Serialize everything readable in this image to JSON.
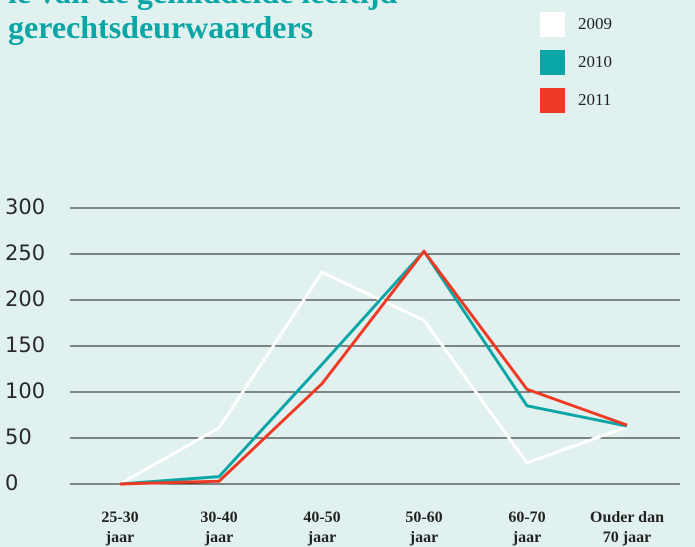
{
  "chart_data": {
    "type": "line",
    "title": [
      "le van de gemiddelde leeftijd",
      "gerechtsdeurwaarders"
    ],
    "categories": [
      [
        "25-30",
        "jaar"
      ],
      [
        "30-40",
        "jaar"
      ],
      [
        "40-50",
        "jaar"
      ],
      [
        "50-60",
        "jaar"
      ],
      [
        "60-70",
        "jaar"
      ],
      [
        "Ouder dan",
        "70 jaar"
      ]
    ],
    "series": [
      {
        "name": "2009",
        "color": "#ffffff",
        "values": [
          0,
          61,
          230,
          178,
          23,
          62
        ]
      },
      {
        "name": "2010",
        "color": "#0aa5a5",
        "values": [
          0,
          8,
          130,
          253,
          85,
          63
        ]
      },
      {
        "name": "2011",
        "color": "#ee3a24",
        "values": [
          0,
          3,
          109,
          253,
          103,
          64
        ]
      }
    ],
    "ylim": [
      0,
      300
    ],
    "yticks": [
      0,
      50,
      100,
      150,
      200,
      250,
      300
    ],
    "grid": true,
    "legend": "top-right"
  }
}
